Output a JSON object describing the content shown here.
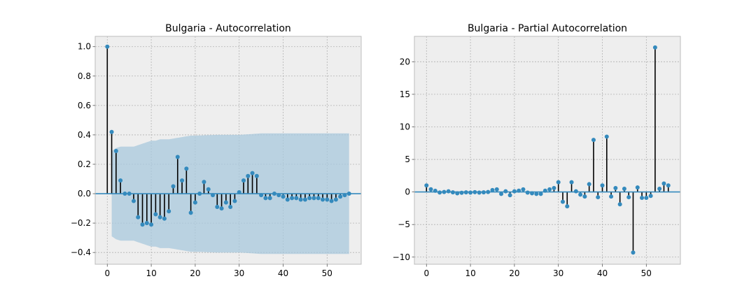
{
  "chart_data": [
    {
      "type": "stem",
      "title": "Bulgaria - Autocorrelation",
      "xlabel": "",
      "ylabel": "",
      "xlim": [
        -2.75,
        57.75
      ],
      "ylim": [
        -0.48,
        1.07
      ],
      "xticks": [
        0,
        10,
        20,
        30,
        40,
        50
      ],
      "yticks": [
        -0.4,
        -0.2,
        0.0,
        0.2,
        0.4,
        0.6,
        0.8,
        1.0
      ],
      "ytick_labels": [
        "−0.4",
        "−0.2",
        "0.0",
        "0.2",
        "0.4",
        "0.6",
        "0.8",
        "1.0"
      ],
      "xtick_labels": [
        "0",
        "10",
        "20",
        "30",
        "40",
        "50"
      ],
      "grid": true,
      "confidence_band": {
        "lags": [
          0,
          1,
          2,
          3,
          4,
          5,
          6,
          7,
          8,
          9,
          10,
          11,
          12,
          13,
          14,
          15,
          16,
          17,
          18,
          19,
          20,
          25,
          30,
          35,
          40,
          45,
          50,
          55
        ],
        "upper": [
          0.25,
          0.29,
          0.31,
          0.32,
          0.32,
          0.32,
          0.32,
          0.33,
          0.34,
          0.35,
          0.36,
          0.36,
          0.37,
          0.37,
          0.37,
          0.375,
          0.38,
          0.385,
          0.39,
          0.395,
          0.395,
          0.4,
          0.4,
          0.41,
          0.41,
          0.41,
          0.41,
          0.41
        ],
        "lower": [
          -0.25,
          -0.29,
          -0.31,
          -0.32,
          -0.32,
          -0.32,
          -0.32,
          -0.33,
          -0.34,
          -0.35,
          -0.36,
          -0.36,
          -0.37,
          -0.37,
          -0.37,
          -0.375,
          -0.38,
          -0.385,
          -0.39,
          -0.395,
          -0.395,
          -0.4,
          -0.4,
          -0.41,
          -0.41,
          -0.41,
          -0.41,
          -0.41
        ],
        "start_lag": 1,
        "end_lag": 55
      },
      "x": [
        0,
        1,
        2,
        3,
        4,
        5,
        6,
        7,
        8,
        9,
        10,
        11,
        12,
        13,
        14,
        15,
        16,
        17,
        18,
        19,
        20,
        21,
        22,
        23,
        24,
        25,
        26,
        27,
        28,
        29,
        30,
        31,
        32,
        33,
        34,
        35,
        36,
        37,
        38,
        39,
        40,
        41,
        42,
        43,
        44,
        45,
        46,
        47,
        48,
        49,
        50,
        51,
        52,
        53,
        54,
        55
      ],
      "values": [
        1.0,
        0.42,
        0.29,
        0.09,
        0.0,
        0.0,
        -0.05,
        -0.16,
        -0.21,
        -0.2,
        -0.21,
        -0.14,
        -0.16,
        -0.17,
        -0.12,
        0.05,
        0.25,
        0.09,
        0.17,
        -0.13,
        -0.06,
        0.0,
        0.08,
        0.03,
        -0.01,
        -0.09,
        -0.1,
        -0.06,
        -0.09,
        -0.05,
        0.01,
        0.09,
        0.12,
        0.14,
        0.12,
        -0.01,
        -0.03,
        -0.03,
        0.0,
        -0.01,
        -0.02,
        -0.04,
        -0.03,
        -0.03,
        -0.04,
        -0.04,
        -0.03,
        -0.03,
        -0.03,
        -0.04,
        -0.04,
        -0.05,
        -0.04,
        -0.02,
        -0.01,
        0.0
      ]
    },
    {
      "type": "stem",
      "title": "Bulgaria - Partial Autocorrelation",
      "xlabel": "",
      "ylabel": "",
      "xlim": [
        -2.75,
        57.75
      ],
      "ylim": [
        -11.1,
        23.9
      ],
      "xticks": [
        0,
        10,
        20,
        30,
        40,
        50
      ],
      "yticks": [
        -10,
        -5,
        0,
        5,
        10,
        15,
        20
      ],
      "ytick_labels": [
        "−10",
        "−5",
        "0",
        "5",
        "10",
        "15",
        "20"
      ],
      "xtick_labels": [
        "0",
        "10",
        "20",
        "30",
        "40",
        "50"
      ],
      "grid": true,
      "x": [
        0,
        1,
        2,
        3,
        4,
        5,
        6,
        7,
        8,
        9,
        10,
        11,
        12,
        13,
        14,
        15,
        16,
        17,
        18,
        19,
        20,
        21,
        22,
        23,
        24,
        25,
        26,
        27,
        28,
        29,
        30,
        31,
        32,
        33,
        34,
        35,
        36,
        37,
        38,
        39,
        40,
        41,
        42,
        43,
        44,
        45,
        46,
        47,
        48,
        49,
        50,
        51,
        52,
        53,
        54,
        55
      ],
      "values": [
        1.0,
        0.42,
        0.18,
        -0.08,
        0.0,
        0.1,
        -0.05,
        -0.2,
        -0.12,
        -0.05,
        -0.1,
        -0.03,
        -0.1,
        -0.05,
        0.0,
        0.3,
        0.4,
        -0.3,
        0.1,
        -0.5,
        0.1,
        0.2,
        0.4,
        -0.1,
        -0.2,
        -0.3,
        -0.3,
        0.2,
        0.4,
        0.6,
        1.5,
        -1.5,
        -2.2,
        1.5,
        0.1,
        -0.4,
        -0.7,
        1.2,
        8.0,
        -0.8,
        1.0,
        8.5,
        -0.7,
        0.6,
        -1.9,
        0.5,
        -0.8,
        -9.3,
        0.7,
        -0.9,
        -0.9,
        -0.6,
        22.2,
        0.5,
        1.3,
        1.0
      ]
    }
  ],
  "style": {
    "marker_color": "#348abd",
    "stem_color": "#000000",
    "band_color": "#a8c8dc",
    "plot_background": "#eeeeee",
    "grid_color": "#b2b2b2"
  }
}
